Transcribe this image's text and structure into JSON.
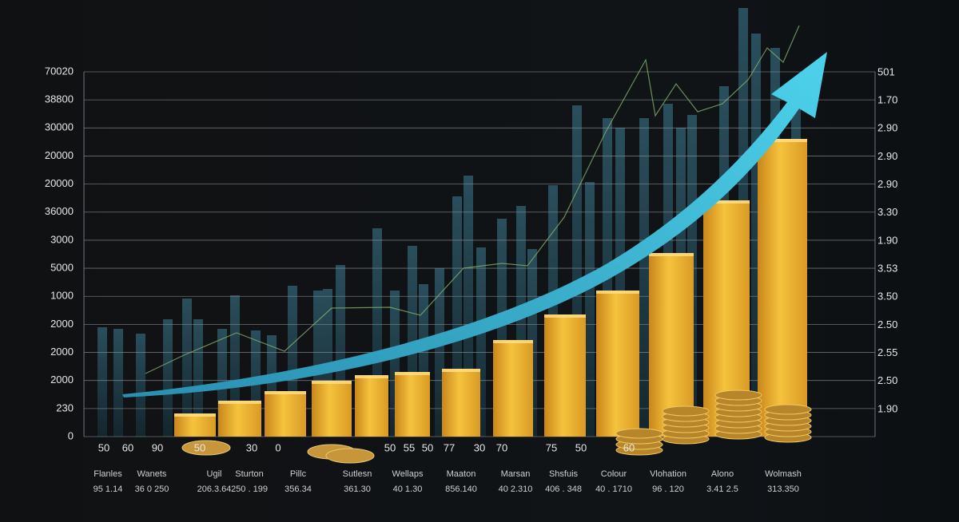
{
  "left_axis": [
    "70020",
    "38800",
    "30000",
    "20000",
    "20000",
    "36000",
    "3000",
    "5000",
    "1000",
    "2000",
    "2000",
    "2000",
    "230",
    "0"
  ],
  "right_axis": [
    "501",
    "1.70",
    "2.90",
    "2.90",
    "2.90",
    "3.30",
    "1.90",
    "3.53",
    "3.50",
    "2.50",
    "2.55",
    "2.50",
    "1.90"
  ],
  "x_numbers": [
    "50",
    "60",
    "90",
    "50",
    "30",
    "0",
    "50",
    "55",
    "50",
    "77",
    "30",
    "70",
    "75",
    "50",
    "60"
  ],
  "items": [
    {
      "name": "Flanles",
      "value": "95 1.14"
    },
    {
      "name": "Wanets",
      "value": "36 0 250"
    },
    {
      "name": "Ugil",
      "value": "206.3.64"
    },
    {
      "name": "Sturton",
      "value": "250 . 199"
    },
    {
      "name": "Pillc",
      "value": "356.34"
    },
    {
      "name": "Sutlesn",
      "value": "361.30"
    },
    {
      "name": "Wellaps",
      "value": "40 1.30"
    },
    {
      "name": "Maaton",
      "value": "856.140"
    },
    {
      "name": "Marsan",
      "value": "40 2.310"
    },
    {
      "name": "Shsfuis",
      "value": "406 . 348"
    },
    {
      "name": "Colour",
      "value": "40 . 1710"
    },
    {
      "name": "Vlohation",
      "value": "96 . 120"
    },
    {
      "name": "Alono",
      "value": "3.41 2.5"
    },
    {
      "name": "Wolmash",
      "value": "313.350"
    }
  ]
}
